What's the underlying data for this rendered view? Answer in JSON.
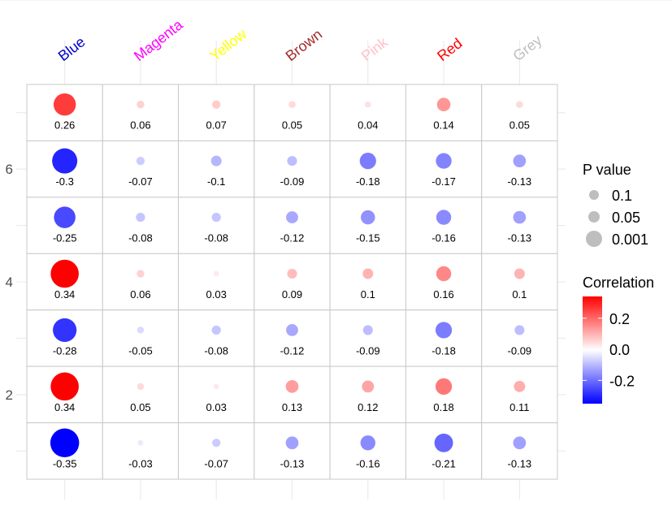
{
  "chart_data": {
    "type": "heatmap",
    "columns": [
      {
        "name": "Blue",
        "color": "#0000CD"
      },
      {
        "name": "Magenta",
        "color": "#FF00FF"
      },
      {
        "name": "Yellow",
        "color": "#FFFF00"
      },
      {
        "name": "Brown",
        "color": "#A52A2A"
      },
      {
        "name": "Pink",
        "color": "#FFC0CB"
      },
      {
        "name": "Red",
        "color": "#FF0000"
      },
      {
        "name": "Grey",
        "color": "#BEBEBE"
      }
    ],
    "y_ticks": [
      "6",
      "4",
      "2"
    ],
    "rows": [
      {
        "y": 7,
        "correlations": [
          0.26,
          0.06,
          0.07,
          0.05,
          0.04,
          0.14,
          0.05
        ],
        "labels": [
          "0.26",
          "0.06",
          "0.07",
          "0.05",
          "0.04",
          "0.14",
          "0.05"
        ]
      },
      {
        "y": 6,
        "correlations": [
          -0.3,
          -0.07,
          -0.1,
          -0.09,
          -0.18,
          -0.17,
          -0.13
        ],
        "labels": [
          "-0.3",
          "-0.07",
          "-0.1",
          "-0.09",
          "-0.18",
          "-0.17",
          "-0.13"
        ]
      },
      {
        "y": 5,
        "correlations": [
          -0.25,
          -0.08,
          -0.08,
          -0.12,
          -0.15,
          -0.16,
          -0.13
        ],
        "labels": [
          "-0.25",
          "-0.08",
          "-0.08",
          "-0.12",
          "-0.15",
          "-0.16",
          "-0.13"
        ]
      },
      {
        "y": 4,
        "correlations": [
          0.34,
          0.06,
          0.03,
          0.09,
          0.1,
          0.16,
          0.1
        ],
        "labels": [
          "0.34",
          "0.06",
          "0.03",
          "0.09",
          "0.1",
          "0.16",
          "0.1"
        ]
      },
      {
        "y": 3,
        "correlations": [
          -0.28,
          -0.05,
          -0.08,
          -0.12,
          -0.09,
          -0.18,
          -0.09
        ],
        "labels": [
          "-0.28",
          "-0.05",
          "-0.08",
          "-0.12",
          "-0.09",
          "-0.18",
          "-0.09"
        ]
      },
      {
        "y": 2,
        "correlations": [
          0.34,
          0.05,
          0.03,
          0.13,
          0.12,
          0.18,
          0.11
        ],
        "labels": [
          "0.34",
          "0.05",
          "0.03",
          "0.13",
          "0.12",
          "0.18",
          "0.11"
        ]
      },
      {
        "y": 1,
        "correlations": [
          -0.35,
          -0.03,
          -0.07,
          -0.13,
          -0.16,
          -0.21,
          -0.13
        ],
        "labels": [
          "-0.35",
          "-0.03",
          "-0.07",
          "-0.13",
          "-0.16",
          "-0.21",
          "-0.13"
        ]
      }
    ],
    "ylim": [
      0.5,
      7.5
    ],
    "grid": true,
    "size_legend": {
      "title": "P value",
      "entries": [
        "0.1",
        "0.05",
        "0.001"
      ]
    },
    "color_legend": {
      "title": "Correlation",
      "ticks": [
        {
          "value": 0.2,
          "label": "0.2"
        },
        {
          "value": 0.0,
          "label": "0.0"
        },
        {
          "value": -0.2,
          "label": "-0.2"
        }
      ],
      "range": [
        -0.35,
        0.34
      ],
      "low_color": "#0000FF",
      "mid_color": "#FFFFFF",
      "high_color": "#FF0000"
    },
    "legend_position": "right"
  }
}
